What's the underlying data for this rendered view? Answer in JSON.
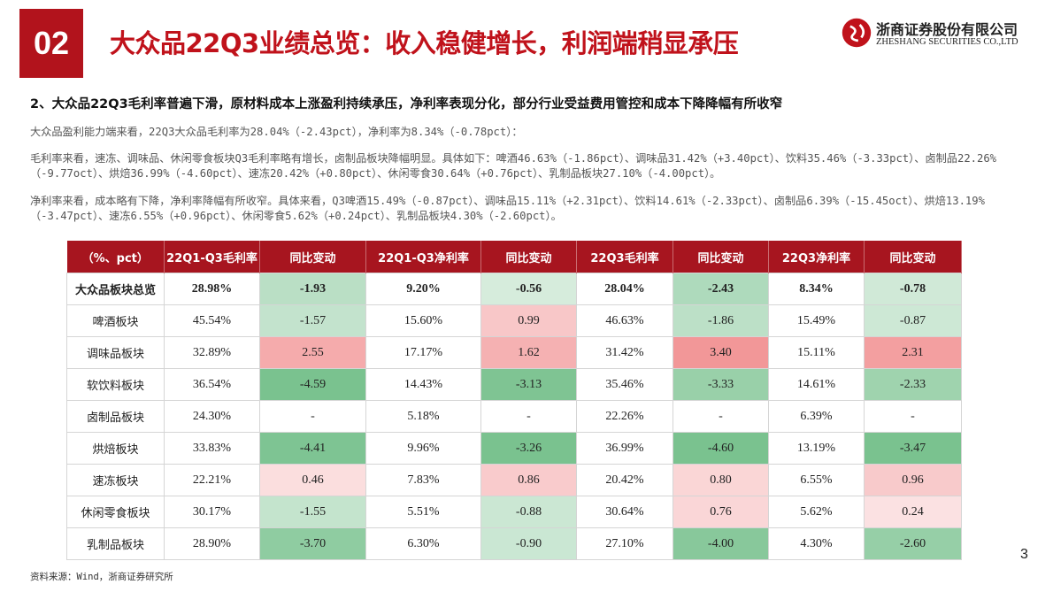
{
  "header": {
    "number": "02",
    "title": "大众品22Q3业绩总览：收入稳健增长，利润端稍显承压",
    "logo_cn": "浙商证券股份有限公司",
    "logo_en": "ZHESHANG SECURITIES CO.,LTD"
  },
  "subtitle": "2、大众品22Q3毛利率普遍下滑，原材料成本上涨盈利持续承压，净利率表现分化，部分行业受益费用管控和成本下降降幅有所收窄",
  "paragraphs": [
    "大众品盈利能力端来看，22Q3大众品毛利率为28.04%（-2.43pct），净利率为8.34%（-0.78pct）：",
    "毛利率来看，速冻、调味品、休闲零食板块Q3毛利率略有增长，卤制品板块降幅明显。具体如下：啤酒46.63%（-1.86pct）、调味品31.42%（+3.40pct）、饮料35.46%（-3.33pct）、卤制品22.26%（-9.77oct）、烘焙36.99%（-4.60pct）、速冻20.42%（+0.80pct）、休闲零食30.64%（+0.76pct）、乳制品板块27.10%（-4.00pct）。",
    "净利率来看，成本略有下降，净利率降幅有所收窄。具体来看，Q3啤酒15.49%（-0.87pct）、调味品15.11%（+2.31pct）、饮料14.61%（-2.33pct）、卤制品6.39%（-15.45oct）、烘焙13.19%（-3.47pct）、速冻6.55%（+0.96pct）、休闲零食5.62%（+0.24pct）、乳制品板块4.30%（-2.60pct）。"
  ],
  "table": {
    "columns": [
      "（%、pct）",
      "22Q1-Q3毛利率",
      "同比变动",
      "22Q1-Q3净利率",
      "同比变动",
      "22Q3毛利率",
      "同比变动",
      "22Q3净利率",
      "同比变动"
    ],
    "rows": [
      [
        "大众品板块总览",
        "28.98%",
        "-1.93",
        "9.20%",
        "-0.56",
        "28.04%",
        "-2.43",
        "8.34%",
        "-0.78"
      ],
      [
        "啤酒板块",
        "45.54%",
        "-1.57",
        "15.60%",
        "0.99",
        "46.63%",
        "-1.86",
        "15.49%",
        "-0.87"
      ],
      [
        "调味品板块",
        "32.89%",
        "2.55",
        "17.17%",
        "1.62",
        "31.42%",
        "3.40",
        "15.11%",
        "2.31"
      ],
      [
        "软饮料板块",
        "36.54%",
        "-4.59",
        "14.43%",
        "-3.13",
        "35.46%",
        "-3.33",
        "14.61%",
        "-2.33"
      ],
      [
        "卤制品板块",
        "24.30%",
        "-",
        "5.18%",
        "-",
        "22.26%",
        "-",
        "6.39%",
        "-"
      ],
      [
        "烘焙板块",
        "33.83%",
        "-4.41",
        "9.96%",
        "-3.26",
        "36.99%",
        "-4.60",
        "13.19%",
        "-3.47"
      ],
      [
        "速冻板块",
        "22.21%",
        "0.46",
        "7.83%",
        "0.86",
        "20.42%",
        "0.80",
        "6.55%",
        "0.96"
      ],
      [
        "休闲零食板块",
        "30.17%",
        "-1.55",
        "5.51%",
        "-0.88",
        "30.64%",
        "0.76",
        "5.62%",
        "0.24"
      ],
      [
        "乳制品板块",
        "28.90%",
        "-3.70",
        "6.30%",
        "-0.90",
        "27.10%",
        "-4.00",
        "4.30%",
        "-2.60"
      ]
    ]
  },
  "source": "资料来源：Wind，浙商证券研究所",
  "page_number": "3"
}
